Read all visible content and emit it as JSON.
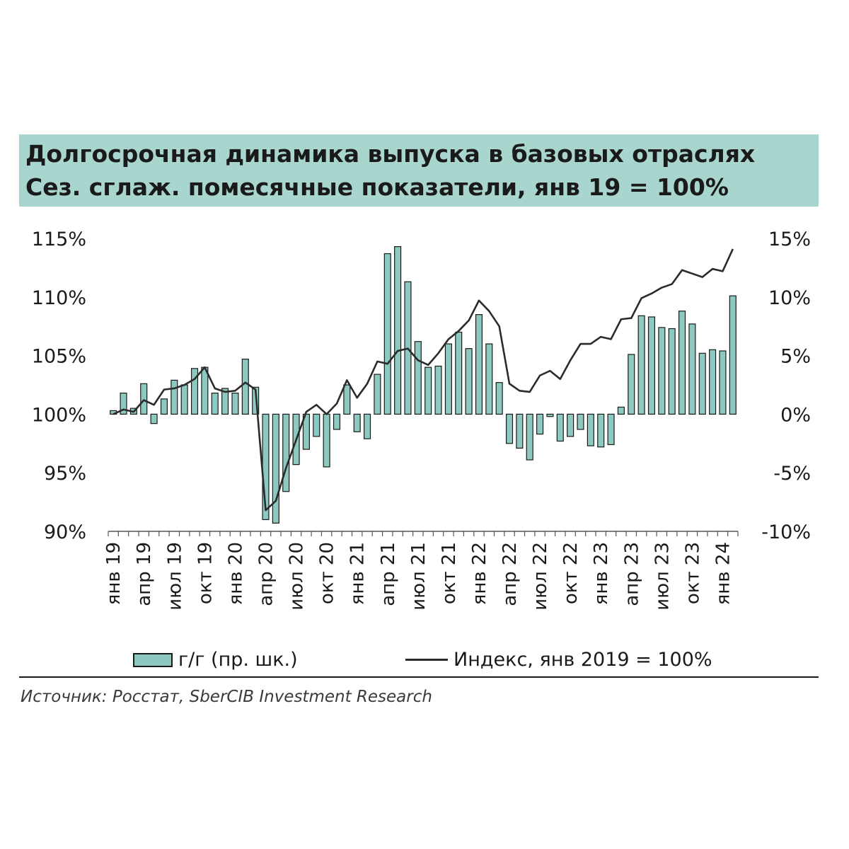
{
  "title": {
    "line1": "Долгосрочная динамика выпуска в базовых отраслях",
    "line2": "Сез. сглаж. помесячные показатели, янв 19 = 100%"
  },
  "legend": {
    "bars": "г/г (пр. шк.)",
    "line": "Индекс, янв 2019 = 100%"
  },
  "source": "Источник: Росстат, SberCIB Investment Research",
  "colors": {
    "bar_fill": "#8ec9c1",
    "bar_stroke": "#1a1a1a",
    "line": "#2b2b2b",
    "title_bg": "#a9d5cf"
  },
  "chart_data": {
    "type": "bar",
    "combo": "bar+line",
    "title": "Долгосрочная динамика выпуска в базовых отраслях",
    "subtitle": "Сез. сглаж. помесячные показатели, янв 19 = 100%",
    "x_tick_labels": [
      "янв 19",
      "апр 19",
      "июл 19",
      "окт 19",
      "янв 20",
      "апр 20",
      "июл 20",
      "окт 20",
      "янв 21",
      "апр 21",
      "июл 21",
      "окт 21",
      "янв 22",
      "апр 22",
      "июл 22",
      "окт 22",
      "янв 23",
      "апр 23",
      "июл 23",
      "окт 23",
      "янв 24"
    ],
    "left_axis": {
      "ylim": [
        90,
        115
      ],
      "ticks": [
        "90%",
        "95%",
        "100%",
        "105%",
        "110%",
        "115%"
      ],
      "tick_values": [
        90,
        95,
        100,
        105,
        110,
        115
      ]
    },
    "right_axis": {
      "ylim": [
        -10,
        15
      ],
      "ticks": [
        "-10%",
        "-5%",
        "0%",
        "5%",
        "10%",
        "15%"
      ],
      "tick_values": [
        -10,
        -5,
        0,
        5,
        10,
        15
      ]
    },
    "series": [
      {
        "name": "г/г (пр. шк.)",
        "type": "bar",
        "axis": "right",
        "values": [
          0.3,
          1.8,
          0.5,
          2.6,
          -0.8,
          1.3,
          2.9,
          2.5,
          3.9,
          4.0,
          1.8,
          2.2,
          1.8,
          4.7,
          2.3,
          -9.0,
          -9.3,
          -6.6,
          -4.3,
          -3.0,
          -1.9,
          -4.5,
          -1.3,
          2.5,
          -1.5,
          -2.1,
          3.4,
          13.7,
          14.3,
          11.3,
          6.2,
          4.0,
          4.1,
          6.0,
          7.0,
          5.6,
          8.5,
          6.0,
          2.7,
          -2.5,
          -2.9,
          -3.9,
          -1.7,
          -0.2,
          -2.3,
          -1.9,
          -1.3,
          -2.7,
          -2.8,
          -2.6,
          0.6,
          5.1,
          8.4,
          8.3,
          7.4,
          7.3,
          8.8,
          7.7,
          5.2,
          5.5,
          5.4,
          10.1
        ]
      },
      {
        "name": "Индекс, янв 2019 = 100%",
        "type": "line",
        "axis": "left",
        "values": [
          100.0,
          100.4,
          100.2,
          101.2,
          100.8,
          102.1,
          102.2,
          102.5,
          103.0,
          104.0,
          102.2,
          101.9,
          102.0,
          102.7,
          102.1,
          91.8,
          92.6,
          95.4,
          97.8,
          100.2,
          100.8,
          100.0,
          100.9,
          102.9,
          101.4,
          102.6,
          104.5,
          104.3,
          105.4,
          105.6,
          104.6,
          104.2,
          105.2,
          106.4,
          107.1,
          108.0,
          109.7,
          108.8,
          107.5,
          102.6,
          102.0,
          101.9,
          103.3,
          103.7,
          103.0,
          104.6,
          106.0,
          106.0,
          106.6,
          106.4,
          108.1,
          108.2,
          109.9,
          110.3,
          110.8,
          111.1,
          112.3,
          112.0,
          111.7,
          112.4,
          112.2,
          114.1
        ]
      }
    ]
  }
}
